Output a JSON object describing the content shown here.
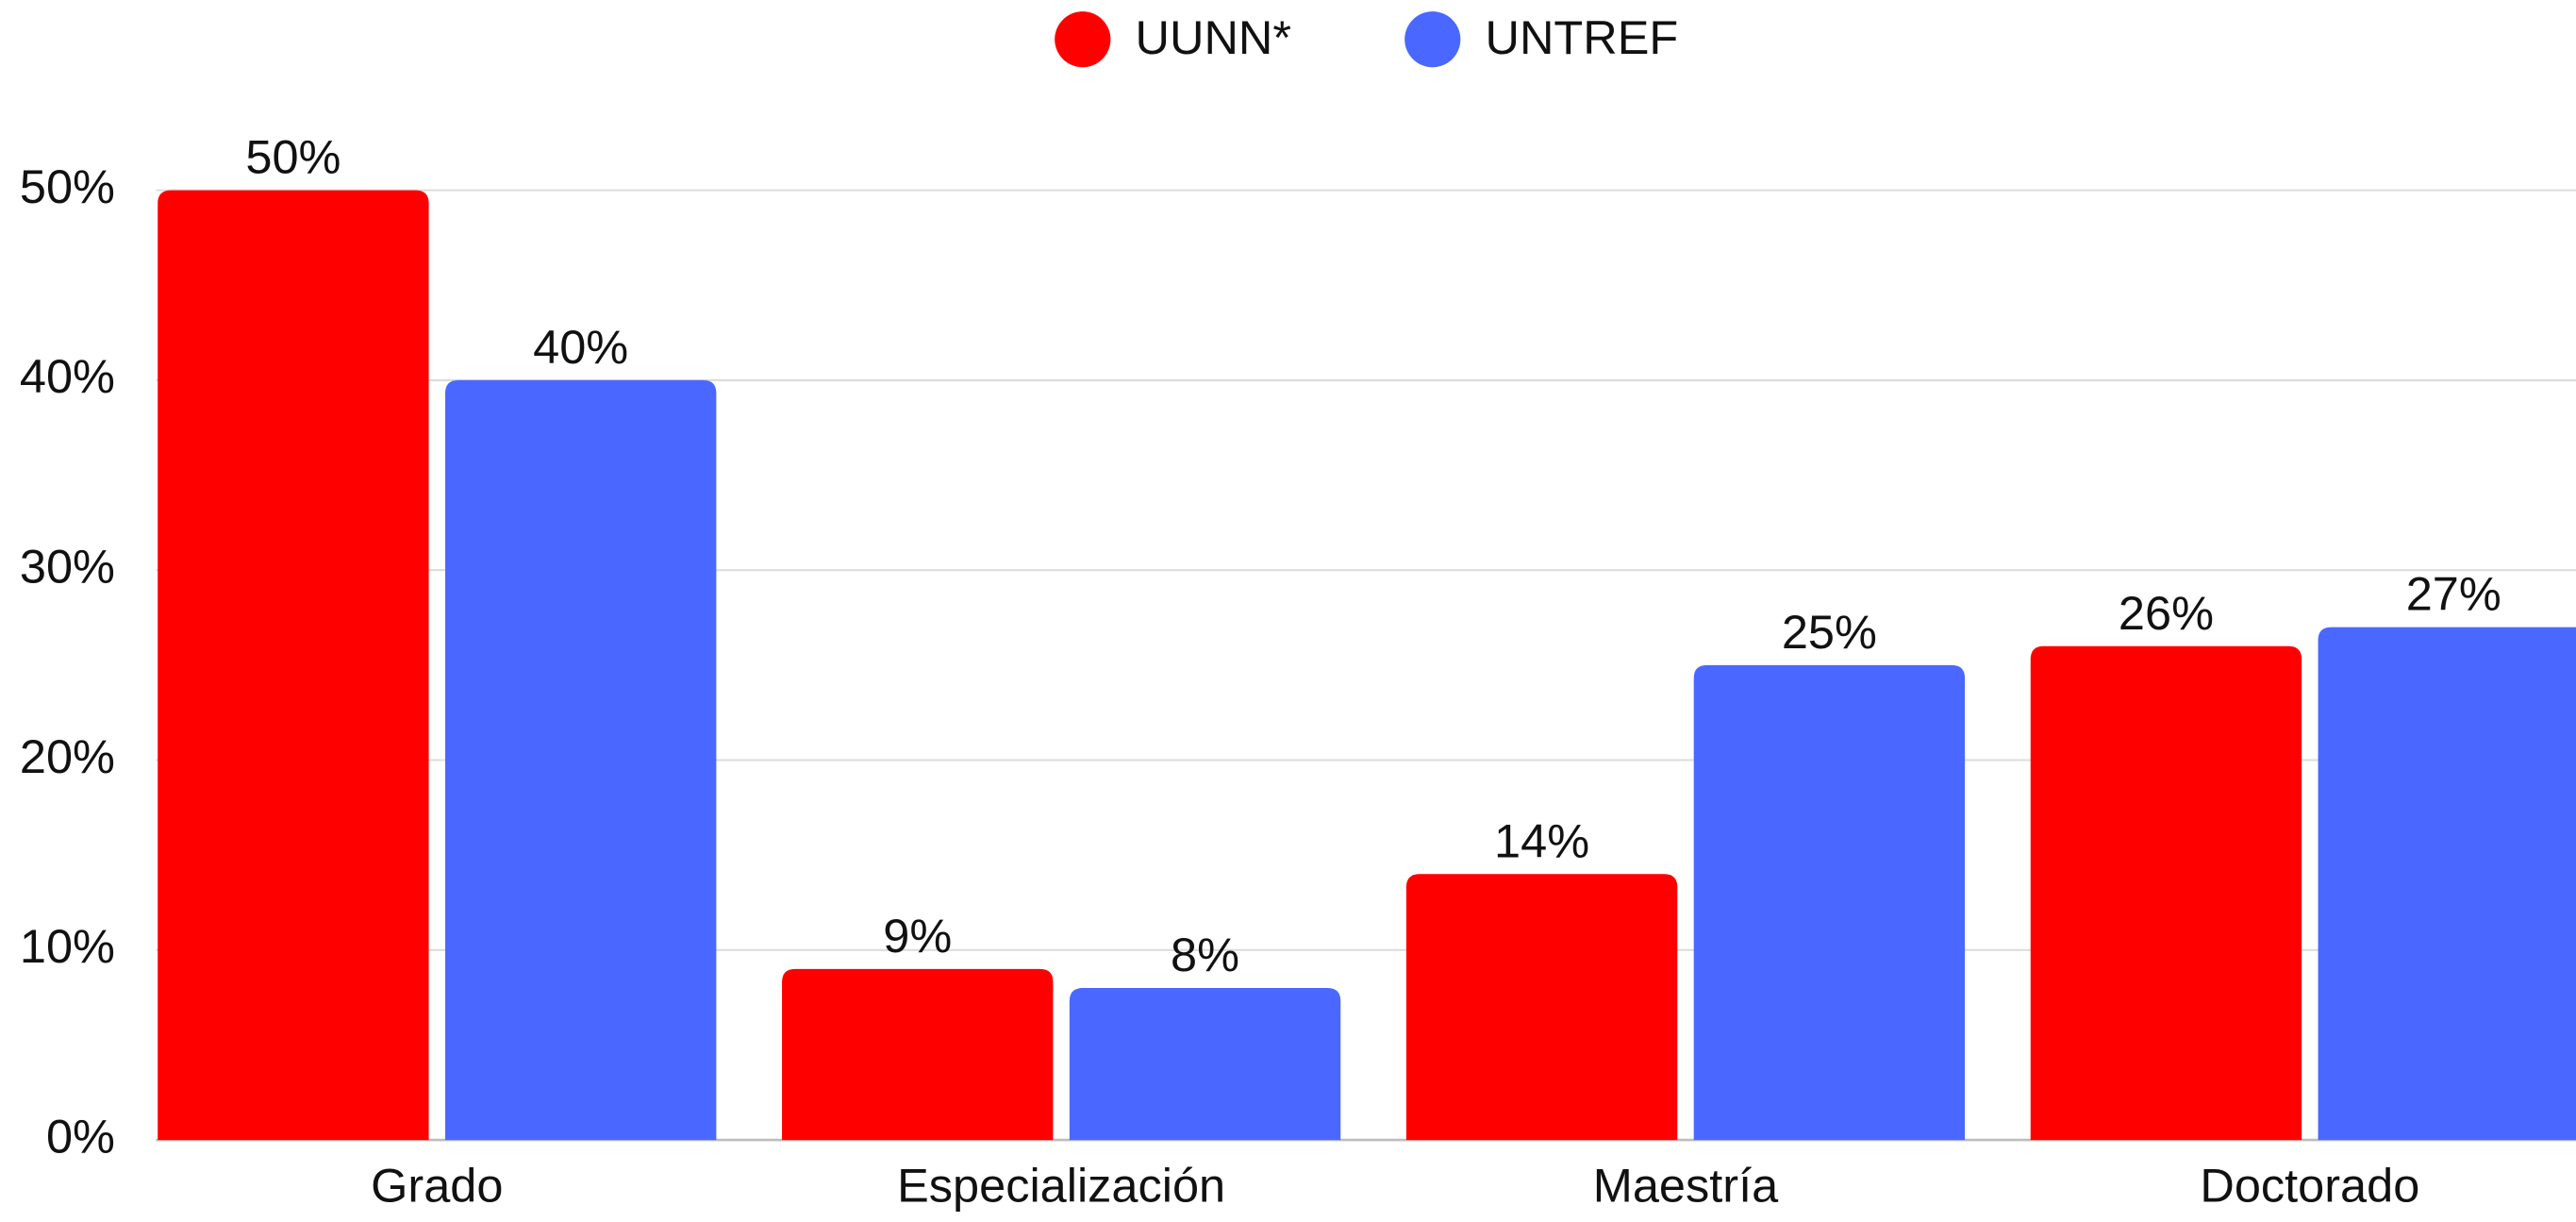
{
  "chart_data": {
    "type": "bar",
    "categories": [
      "Grado",
      "Especialización",
      "Maestría",
      "Doctorado"
    ],
    "series": [
      {
        "name": "UUNN*",
        "color": "#ff0000",
        "values": [
          50,
          9,
          14,
          26
        ],
        "value_labels": [
          "50%",
          "9%",
          "14%",
          "26%"
        ]
      },
      {
        "name": "UNTREF",
        "color": "#4a68ff",
        "values": [
          40,
          8,
          25,
          27
        ],
        "value_labels": [
          "40%",
          "8%",
          "25%",
          "27%"
        ]
      }
    ],
    "ylim": [
      0,
      50
    ],
    "yticks": [
      {
        "value": 0,
        "label": "0%"
      },
      {
        "value": 10,
        "label": "10%"
      },
      {
        "value": 20,
        "label": "20%"
      },
      {
        "value": 30,
        "label": "30%"
      },
      {
        "value": 40,
        "label": "40%"
      },
      {
        "value": 50,
        "label": "50%"
      }
    ],
    "grid": true,
    "legend": "top"
  }
}
